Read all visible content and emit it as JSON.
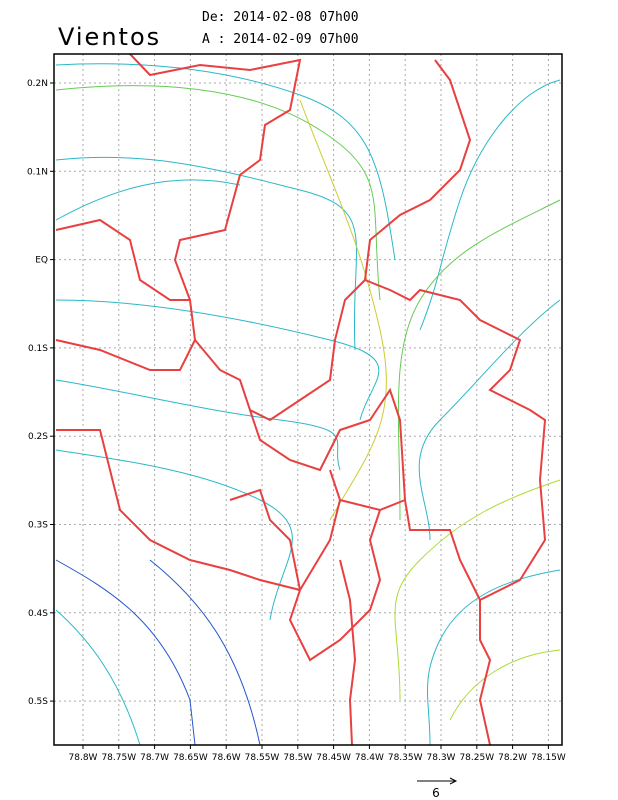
{
  "header": {
    "title": "Vientos",
    "from": "De: 2014-02-08 07h00",
    "to": "A : 2014-02-09 07h00"
  },
  "map": {
    "x_labels": [
      "78.8W",
      "78.75W",
      "78.7W",
      "78.65W",
      "78.6W",
      "78.55W",
      "78.5W",
      "78.45W",
      "78.4W",
      "78.35W",
      "78.3W",
      "78.25W",
      "78.2W",
      "78.15W"
    ],
    "y_labels": [
      "0.2N",
      "0.1N",
      "EQ",
      "0.1S",
      "0.2S",
      "0.3S",
      "0.4S",
      "0.5S"
    ]
  },
  "legend": {
    "reference": "6"
  }
}
